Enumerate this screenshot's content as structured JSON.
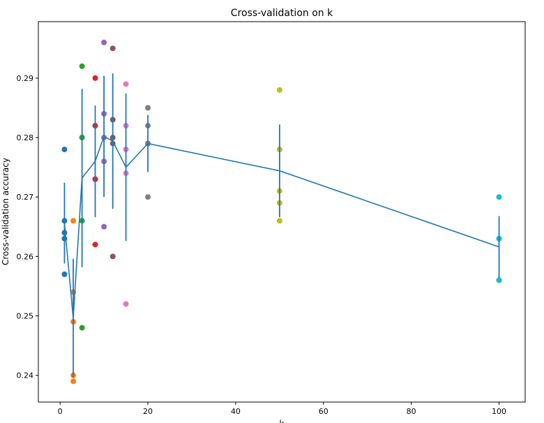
{
  "chart_data": {
    "type": "scatter",
    "title": "Cross-validation on k",
    "xlabel": "k",
    "ylabel": "Cross-validation accuracy",
    "xlim": [
      -4.95,
      105.95
    ],
    "ylim": [
      0.2355,
      0.2995
    ],
    "xticks": [
      0,
      20,
      40,
      60,
      80,
      100
    ],
    "yticks": [
      0.24,
      0.25,
      0.26,
      0.27,
      0.28,
      0.29
    ],
    "ytick_labels": [
      "0.24",
      "0.25",
      "0.26",
      "0.27",
      "0.28",
      "0.29"
    ],
    "grid": false,
    "scatter_series": [
      {
        "k": 1,
        "color": "#1f77b4",
        "values": [
          0.263,
          0.257,
          0.264,
          0.278,
          0.266
        ]
      },
      {
        "k": 3,
        "color": "#ff7f0e",
        "values": [
          0.239,
          0.249,
          0.24,
          0.266,
          0.254
        ]
      },
      {
        "k": 5,
        "color": "#2ca02c",
        "values": [
          0.248,
          0.266,
          0.28,
          0.292,
          0.28
        ]
      },
      {
        "k": 8,
        "color": "#d62728",
        "values": [
          0.262,
          0.282,
          0.273,
          0.29,
          0.273
        ]
      },
      {
        "k": 10,
        "color": "#9467bd",
        "values": [
          0.265,
          0.296,
          0.276,
          0.284,
          0.28
        ]
      },
      {
        "k": 12,
        "color": "#8c564b",
        "values": [
          0.26,
          0.295,
          0.279,
          0.283,
          0.28
        ]
      },
      {
        "k": 15,
        "color": "#e377c2",
        "values": [
          0.252,
          0.289,
          0.278,
          0.282,
          0.274
        ]
      },
      {
        "k": 20,
        "color": "#7f7f7f",
        "values": [
          0.27,
          0.279,
          0.279,
          0.282,
          0.285
        ]
      },
      {
        "k": 50,
        "color": "#bcbd22",
        "values": [
          0.271,
          0.288,
          0.278,
          0.269,
          0.266
        ]
      },
      {
        "k": 100,
        "color": "#17becf",
        "values": [
          0.256,
          0.263,
          0.263,
          0.27,
          0.256
        ]
      }
    ],
    "mean_line": {
      "color": "#1f77b4",
      "k": [
        1,
        3,
        5,
        8,
        10,
        12,
        15,
        20,
        50,
        100
      ],
      "mean": [
        0.2656,
        0.2496,
        0.2732,
        0.276,
        0.2802,
        0.2794,
        0.275,
        0.279,
        0.2744,
        0.2616
      ],
      "std": [
        0.0068,
        0.01,
        0.015,
        0.0094,
        0.0102,
        0.0114,
        0.0124,
        0.0048,
        0.0078,
        0.0052
      ]
    }
  }
}
